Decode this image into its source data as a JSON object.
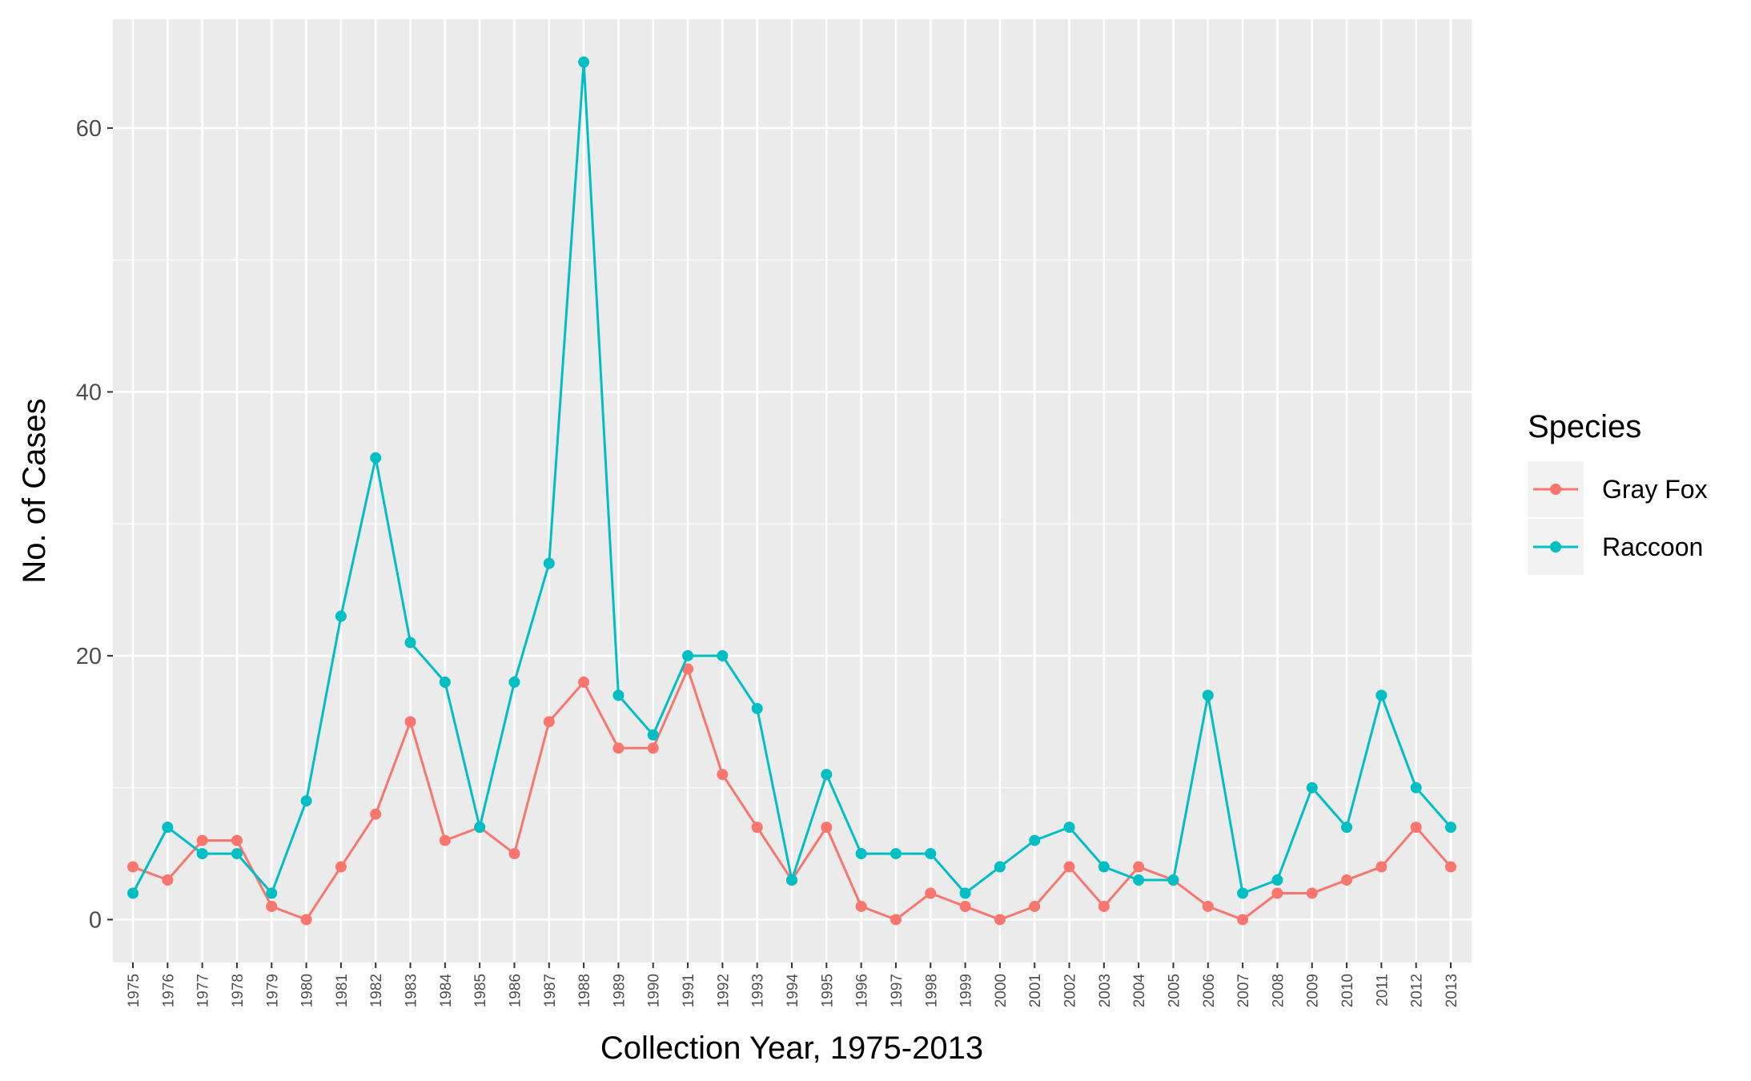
{
  "chart_data": {
    "type": "line",
    "title": "",
    "xlabel": "Collection Year, 1975-2013",
    "ylabel": "No. of Cases",
    "x": [
      1975,
      1976,
      1977,
      1978,
      1979,
      1980,
      1981,
      1982,
      1983,
      1984,
      1985,
      1986,
      1987,
      1988,
      1989,
      1990,
      1991,
      1992,
      1993,
      1994,
      1995,
      1996,
      1997,
      1998,
      1999,
      2000,
      2001,
      2002,
      2003,
      2004,
      2005,
      2006,
      2007,
      2008,
      2009,
      2010,
      2011,
      2012,
      2013
    ],
    "x_tick_labels": [
      "1975",
      "1976",
      "1977",
      "1978",
      "1979",
      "1980",
      "1981",
      "1982",
      "1983",
      "1984",
      "1985",
      "1986",
      "1987",
      "1988",
      "1989",
      "1990",
      "1991",
      "1992",
      "1993",
      "1994",
      "1995",
      "1996",
      "1997",
      "1998",
      "1999",
      "2000",
      "2001",
      "2002",
      "2003",
      "2004",
      "2005",
      "2006",
      "2007",
      "2008",
      "2009",
      "2010",
      "2011",
      "2012",
      "2013"
    ],
    "ylim": [
      -3.25,
      68.25
    ],
    "y_ticks": [
      0,
      20,
      40,
      60
    ],
    "y_tick_labels": [
      "0",
      "20",
      "40",
      "60"
    ],
    "grid": true,
    "legend": {
      "title": "Species",
      "position": "right"
    },
    "series": [
      {
        "name": "Gray Fox",
        "color": "#F8766D",
        "values": [
          4,
          3,
          6,
          6,
          1,
          0,
          4,
          8,
          15,
          6,
          7,
          5,
          15,
          18,
          13,
          13,
          19,
          11,
          7,
          3,
          7,
          1,
          0,
          2,
          1,
          0,
          1,
          4,
          1,
          4,
          3,
          1,
          0,
          2,
          2,
          3,
          4,
          7,
          4
        ]
      },
      {
        "name": "Raccoon",
        "color": "#00BFC4",
        "values": [
          2,
          7,
          5,
          5,
          2,
          9,
          23,
          35,
          21,
          18,
          7,
          18,
          27,
          65,
          17,
          14,
          20,
          20,
          16,
          3,
          11,
          5,
          5,
          5,
          2,
          4,
          6,
          7,
          4,
          3,
          3,
          17,
          2,
          3,
          10,
          7,
          17,
          10,
          7
        ]
      }
    ],
    "colors": {
      "panel": "#EBEBEB",
      "grid": "#FFFFFF",
      "legend_key": "#F2F2F2"
    }
  }
}
